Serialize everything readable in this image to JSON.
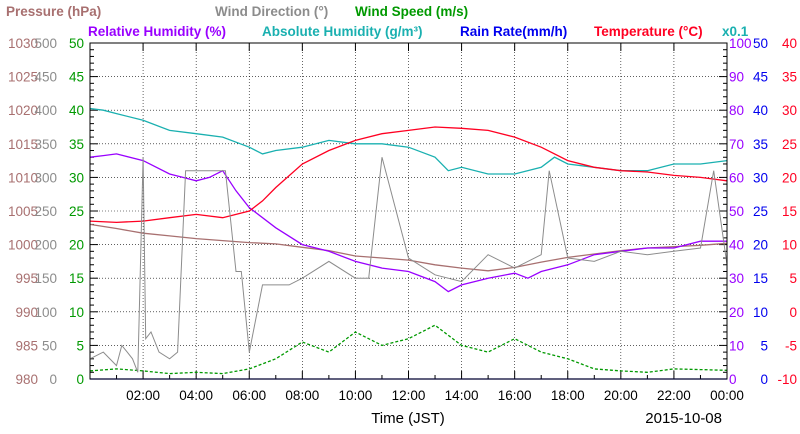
{
  "chart_data": {
    "type": "line",
    "legend": [
      {
        "label": "Pressure (hPa)",
        "color": "#a87070"
      },
      {
        "label": "Wind Direction (°)",
        "color": "#8c8c8c"
      },
      {
        "label": "Wind Speed (m/s)",
        "color": "#009900"
      },
      {
        "label": "Relative Humidity (%)",
        "color": "#9900ff"
      },
      {
        "label": "Absolute Humidity (g/m³)",
        "color": "#1ab0b0"
      },
      {
        "label": "Rain Rate(mm/h)",
        "color": "#0000ee"
      },
      {
        "label": "Temperature (°C)",
        "color": "#ff0022"
      },
      {
        "label": "x0.1",
        "color": "#1ab0b0"
      }
    ],
    "xlabel": "Time (JST)",
    "date": "2015-10-08",
    "x_range": [
      0,
      24
    ],
    "x_tick_labels": [
      "02:00",
      "04:00",
      "06:00",
      "08:00",
      "10:00",
      "12:00",
      "14:00",
      "16:00",
      "18:00",
      "20:00",
      "22:00",
      "00:00"
    ],
    "grid": true,
    "axes": {
      "pressure": {
        "range": [
          980,
          1030
        ],
        "ticks": [
          "980",
          "985",
          "990",
          "995",
          "1000",
          "1005",
          "1010",
          "1015",
          "1020",
          "1025",
          "1030"
        ],
        "color": "#a87070"
      },
      "wind_direction": {
        "range": [
          0,
          500
        ],
        "ticks": [
          "0",
          "50",
          "100",
          "150",
          "200",
          "250",
          "300",
          "350",
          "400",
          "450",
          "500"
        ],
        "color": "#8c8c8c"
      },
      "wind_speed": {
        "range": [
          0,
          50
        ],
        "ticks": [
          "0",
          "5",
          "10",
          "15",
          "20",
          "25",
          "30",
          "35",
          "40",
          "45",
          "50"
        ],
        "color": "#009900"
      },
      "humidity": {
        "range": [
          0,
          100
        ],
        "ticks": [
          "0",
          "10",
          "20",
          "30",
          "40",
          "50",
          "60",
          "70",
          "80",
          "90",
          "100"
        ],
        "color": "#9900ff"
      },
      "rain_rate": {
        "range": [
          0,
          50
        ],
        "ticks": [
          "0",
          "5",
          "10",
          "15",
          "20",
          "25",
          "30",
          "35",
          "40",
          "45",
          "50"
        ],
        "color": "#0000ee"
      },
      "temperature": {
        "range": [
          -10,
          40
        ],
        "ticks": [
          "-10",
          "-5",
          "0",
          "5",
          "10",
          "15",
          "20",
          "25",
          "30",
          "35",
          "40"
        ],
        "color": "#ff0022"
      }
    },
    "series": [
      {
        "name": "Pressure (hPa)",
        "axis": "pressure",
        "color": "#a87070",
        "x": [
          0,
          1,
          2,
          3,
          4,
          5,
          6,
          7,
          8,
          9,
          10,
          11,
          12,
          13,
          14,
          15,
          16,
          17,
          18,
          19,
          20,
          21,
          22,
          23,
          24
        ],
        "y": [
          1003,
          1002.4,
          1001.7,
          1001.3,
          1000.9,
          1000.6,
          1000.3,
          1000.1,
          999.6,
          999.1,
          998.3,
          998.0,
          997.7,
          997.0,
          996.5,
          996.1,
          996.6,
          997.4,
          998.1,
          998.6,
          999.1,
          999.5,
          999.7,
          999.9,
          1000.2
        ]
      },
      {
        "name": "Relative Humidity (%)",
        "axis": "humidity",
        "color": "#9900ff",
        "x": [
          0,
          0.5,
          1,
          2,
          3,
          3.5,
          4,
          4.5,
          5,
          5.5,
          6,
          7,
          8,
          9,
          10,
          11,
          12,
          13,
          13.5,
          14,
          15,
          16,
          16.5,
          17,
          18,
          19,
          20,
          21,
          22,
          23,
          24
        ],
        "y": [
          66,
          66.5,
          67,
          65,
          61,
          60,
          59,
          60,
          62,
          56,
          51,
          45,
          40,
          38,
          35,
          33,
          32,
          29,
          26,
          28,
          30,
          31.5,
          30,
          32,
          34,
          37,
          38,
          39,
          39,
          41,
          41
        ]
      },
      {
        "name": "Absolute Humidity (g/m³)",
        "axis": "humidity",
        "color": "#1ab0b0",
        "x": [
          0,
          0.5,
          1,
          2,
          3,
          4,
          5,
          6,
          6.5,
          7,
          8,
          9,
          10,
          11,
          12,
          13,
          13.5,
          14,
          15,
          16,
          17,
          17.5,
          18,
          19,
          20,
          21,
          22,
          23,
          24
        ],
        "y": [
          80.5,
          80,
          79,
          77,
          74,
          73,
          72,
          69,
          67,
          68,
          69,
          71,
          70,
          70,
          69,
          66,
          62,
          63,
          61,
          61,
          63,
          66,
          64,
          63,
          62,
          62,
          64,
          64,
          65
        ]
      },
      {
        "name": "Temperature (°C)",
        "axis": "temperature",
        "color": "#ff0022",
        "x": [
          0,
          1,
          2,
          3,
          4,
          5,
          6,
          6.5,
          7,
          8,
          9,
          10,
          11,
          12,
          13,
          14,
          15,
          16,
          17,
          18,
          19,
          20,
          21,
          22,
          23,
          24
        ],
        "y": [
          13.5,
          13.3,
          13.5,
          14,
          14.5,
          14,
          15,
          16.5,
          18.5,
          22,
          24,
          25.5,
          26.5,
          27,
          27.5,
          27.3,
          27,
          26,
          24.5,
          22.5,
          21.5,
          21,
          20.8,
          20.3,
          20,
          19.5
        ]
      },
      {
        "name": "Wind Speed (m/s)",
        "axis": "wind_speed",
        "color": "#009900",
        "x": [
          0,
          1,
          2,
          3,
          4,
          5,
          6,
          7,
          8,
          9,
          10,
          11,
          12,
          13,
          14,
          15,
          16,
          17,
          18,
          19,
          20,
          21,
          22,
          23,
          24
        ],
        "y": [
          1.2,
          1.5,
          1.2,
          0.8,
          1.0,
          0.8,
          1.5,
          3,
          5.5,
          4,
          7,
          5,
          6,
          8,
          5,
          4,
          6,
          4,
          3,
          1.5,
          1.2,
          1,
          1.5,
          1.4,
          1.3
        ]
      },
      {
        "name": "Wind Direction (°)",
        "axis": "wind_direction",
        "color": "#8c8c8c",
        "x": [
          0,
          0.5,
          1,
          1.2,
          1.4,
          1.6,
          1.8,
          2,
          2.1,
          2.3,
          2.6,
          3,
          3.3,
          3.6,
          4,
          4.4,
          4.8,
          5.1,
          5.5,
          5.7,
          6,
          6.5,
          7,
          7.5,
          8,
          9,
          10,
          10.5,
          11,
          12,
          13,
          14,
          15,
          16,
          17,
          17.3,
          18,
          19,
          20,
          21,
          22,
          23,
          23.5,
          24
        ],
        "y": [
          30,
          40,
          20,
          50,
          40,
          30,
          10,
          330,
          60,
          70,
          40,
          30,
          40,
          310,
          310,
          310,
          310,
          310,
          160,
          160,
          40,
          140,
          140,
          140,
          150,
          175,
          150,
          150,
          330,
          180,
          155,
          145,
          185,
          165,
          185,
          310,
          180,
          175,
          190,
          185,
          190,
          195,
          310,
          170
        ]
      },
      {
        "name": "Rain Rate(mm/h)",
        "axis": "rain_rate",
        "color": "#0000ee",
        "x": [
          0,
          24
        ],
        "y": [
          0,
          0
        ]
      }
    ]
  }
}
